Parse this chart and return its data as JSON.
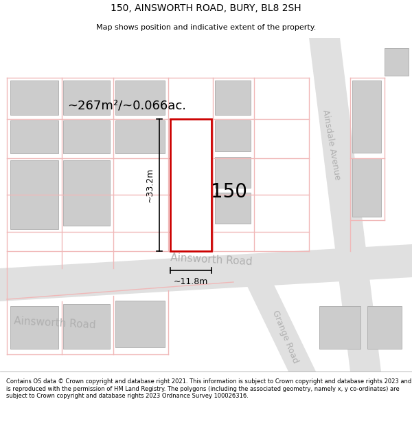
{
  "title": "150, AINSWORTH ROAD, BURY, BL8 2SH",
  "subtitle": "Map shows position and indicative extent of the property.",
  "footer": "Contains OS data © Crown copyright and database right 2021. This information is subject to Crown copyright and database rights 2023 and is reproduced with the permission of HM Land Registry. The polygons (including the associated geometry, namely x, y co-ordinates) are subject to Crown copyright and database rights 2023 Ordnance Survey 100026316.",
  "highlight_color": "#cc0000",
  "road_pink": "#f0b8b8",
  "road_gray": "#e0e0e0",
  "building_fill": "#cccccc",
  "building_edge": "#aaaaaa",
  "area_text": "~267m²/~0.066ac.",
  "number_text": "150",
  "dim_width": "~11.8m",
  "dim_height": "~33.2m",
  "label_ainsworth_main": "Ainsworth Road",
  "label_ainsworth_left": "Ainsworth Road",
  "label_ainsdale": "Ainsdale Avenue",
  "label_grange": "Grange Road",
  "label_color": "#b0b0b0"
}
